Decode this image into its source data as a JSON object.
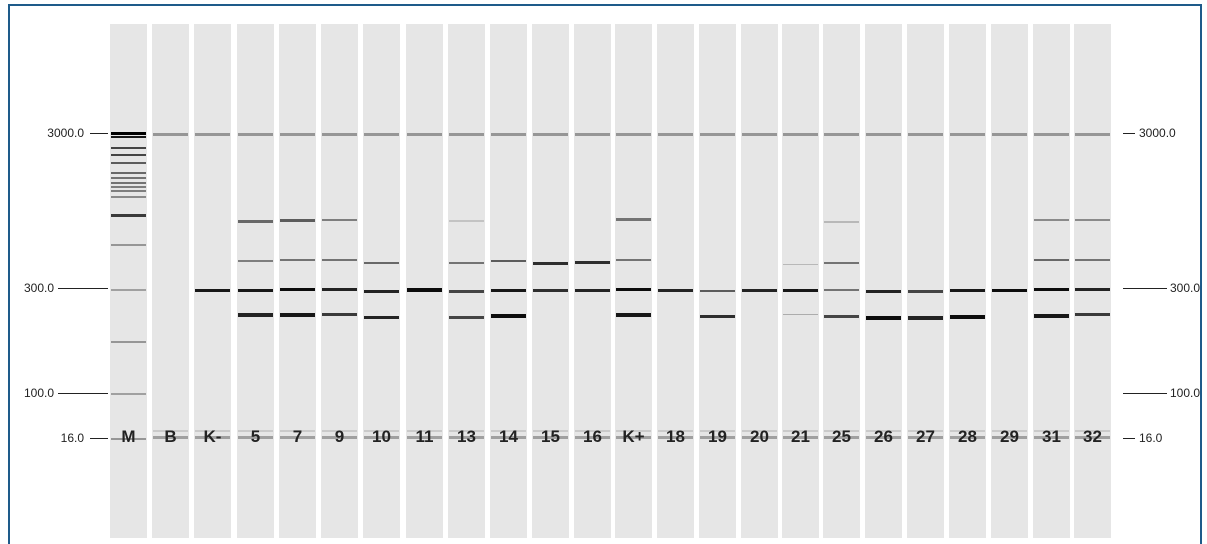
{
  "markers": [
    "3000.0",
    "300.0",
    "100.0",
    "16.0"
  ],
  "lanes": [
    "M",
    "B",
    "K-",
    "5",
    "7",
    "9",
    "10",
    "11",
    "13",
    "14",
    "15",
    "16",
    "K+",
    "18",
    "19",
    "20",
    "21",
    "25",
    "26",
    "27",
    "28",
    "29",
    "31",
    "32"
  ],
  "colors": {
    "frame": "#1e5b8a",
    "lane_bg": "#e6e6e6",
    "band": "#111111"
  }
}
